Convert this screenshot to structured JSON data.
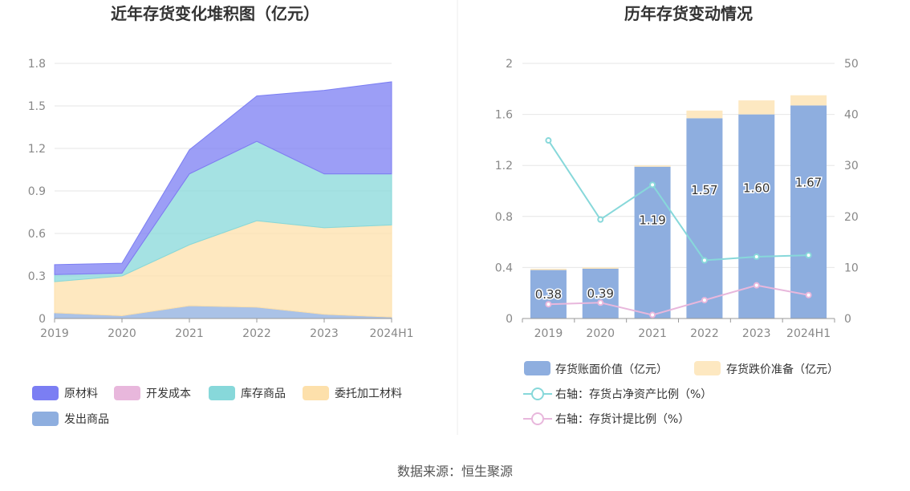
{
  "source": "数据来源：恒生聚源",
  "colors": {
    "raw_material": "#7b7ef3",
    "dev_cost": "#e8b7dc",
    "stock_goods": "#87d8da",
    "consigned": "#fde0ab",
    "shipped": "#8eaedf",
    "book_value": "#8eaedf",
    "impairment": "#fde8c1",
    "line_net_asset": "#87d8da",
    "line_provision": "#e8b7dc"
  },
  "chart_data": [
    {
      "type": "area",
      "title": "近年存货变化堆积图（亿元）",
      "categories": [
        "2019",
        "2020",
        "2021",
        "2022",
        "2023",
        "2024H1"
      ],
      "ylim": [
        0,
        1.8
      ],
      "yticks": [
        "0",
        "0.3",
        "0.6",
        "0.9",
        "1.2",
        "1.5",
        "1.8"
      ],
      "grid": true,
      "stacked": true,
      "legend_position": "bottom",
      "series": [
        {
          "name": "发出商品",
          "values": [
            0.04,
            0.02,
            0.09,
            0.08,
            0.03,
            0.01
          ]
        },
        {
          "name": "委托加工材料",
          "values": [
            0.22,
            0.28,
            0.43,
            0.61,
            0.61,
            0.65
          ]
        },
        {
          "name": "库存商品",
          "values": [
            0.05,
            0.02,
            0.5,
            0.56,
            0.38,
            0.36
          ]
        },
        {
          "name": "开发成本",
          "values": [
            0.0,
            0.0,
            0.0,
            0.0,
            0.0,
            0.0
          ]
        },
        {
          "name": "原材料",
          "values": [
            0.07,
            0.07,
            0.17,
            0.32,
            0.59,
            0.65
          ]
        }
      ],
      "legend": [
        "原材料",
        "开发成本",
        "库存商品",
        "委托加工材料",
        "发出商品"
      ]
    },
    {
      "type": "bar",
      "title": "历年存货变动情况",
      "categories": [
        "2019",
        "2020",
        "2021",
        "2022",
        "2023",
        "2024H1"
      ],
      "ylim": [
        0,
        2
      ],
      "yticks": [
        "0",
        "0.4",
        "0.8",
        "1.2",
        "1.6",
        "2"
      ],
      "y2lim": [
        0,
        50
      ],
      "y2ticks": [
        "0",
        "10",
        "20",
        "30",
        "40",
        "50"
      ],
      "grid": true,
      "legend_position": "bottom",
      "series": [
        {
          "name": "存货账面价值（亿元）",
          "type": "bar",
          "values": [
            0.38,
            0.39,
            1.19,
            1.57,
            1.6,
            1.67
          ],
          "labels": [
            "0.38",
            "0.39",
            "1.19",
            "1.57",
            "1.60",
            "1.67"
          ]
        },
        {
          "name": "存货跌价准备（亿元）",
          "type": "bar",
          "values": [
            0.01,
            0.01,
            0.01,
            0.06,
            0.11,
            0.08
          ]
        },
        {
          "name": "右轴：存货占净资产比例（%）",
          "type": "line",
          "axis": "right",
          "values": [
            34.9,
            19.4,
            26.2,
            11.4,
            12.1,
            12.4
          ]
        },
        {
          "name": "右轴：存货计提比例（%）",
          "type": "line",
          "axis": "right",
          "values": [
            2.8,
            3.1,
            0.7,
            3.6,
            6.5,
            4.6
          ]
        }
      ]
    }
  ]
}
